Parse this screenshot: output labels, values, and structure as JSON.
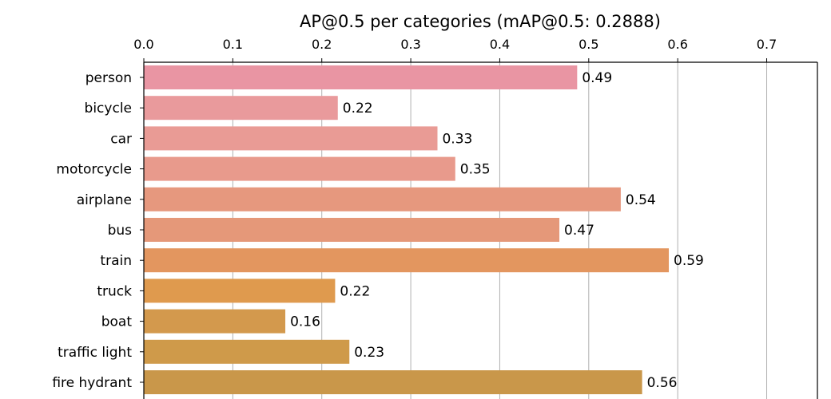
{
  "chart_data": {
    "type": "bar",
    "orientation": "horizontal",
    "title": "AP@0.5 per categories (mAP@0.5: 0.2888)",
    "xlabel": "",
    "ylabel": "",
    "x_axis_position": "top",
    "xlim": [
      0,
      0.757
    ],
    "xticks": [
      0.0,
      0.1,
      0.2,
      0.3,
      0.4,
      0.5,
      0.6,
      0.7
    ],
    "xtick_labels": [
      "0.0",
      "0.1",
      "0.2",
      "0.3",
      "0.4",
      "0.5",
      "0.6",
      "0.7"
    ],
    "grid": "vertical",
    "categories": [
      "person",
      "bicycle",
      "car",
      "motorcycle",
      "airplane",
      "bus",
      "train",
      "truck",
      "boat",
      "traffic light",
      "fire hydrant"
    ],
    "values": [
      0.487,
      0.218,
      0.33,
      0.35,
      0.536,
      0.467,
      0.59,
      0.215,
      0.159,
      0.231,
      0.56
    ],
    "value_labels": [
      "0.49",
      "0.22",
      "0.33",
      "0.35",
      "0.54",
      "0.47",
      "0.59",
      "0.22",
      "0.16",
      "0.23",
      "0.56"
    ],
    "colors": [
      "#e995a3",
      "#e99a9c",
      "#e99b95",
      "#e89a8c",
      "#e6987e",
      "#e59879",
      "#e3965f",
      "#df9a4e",
      "#d3994d",
      "#cf9a4a",
      "#c9974a"
    ]
  }
}
